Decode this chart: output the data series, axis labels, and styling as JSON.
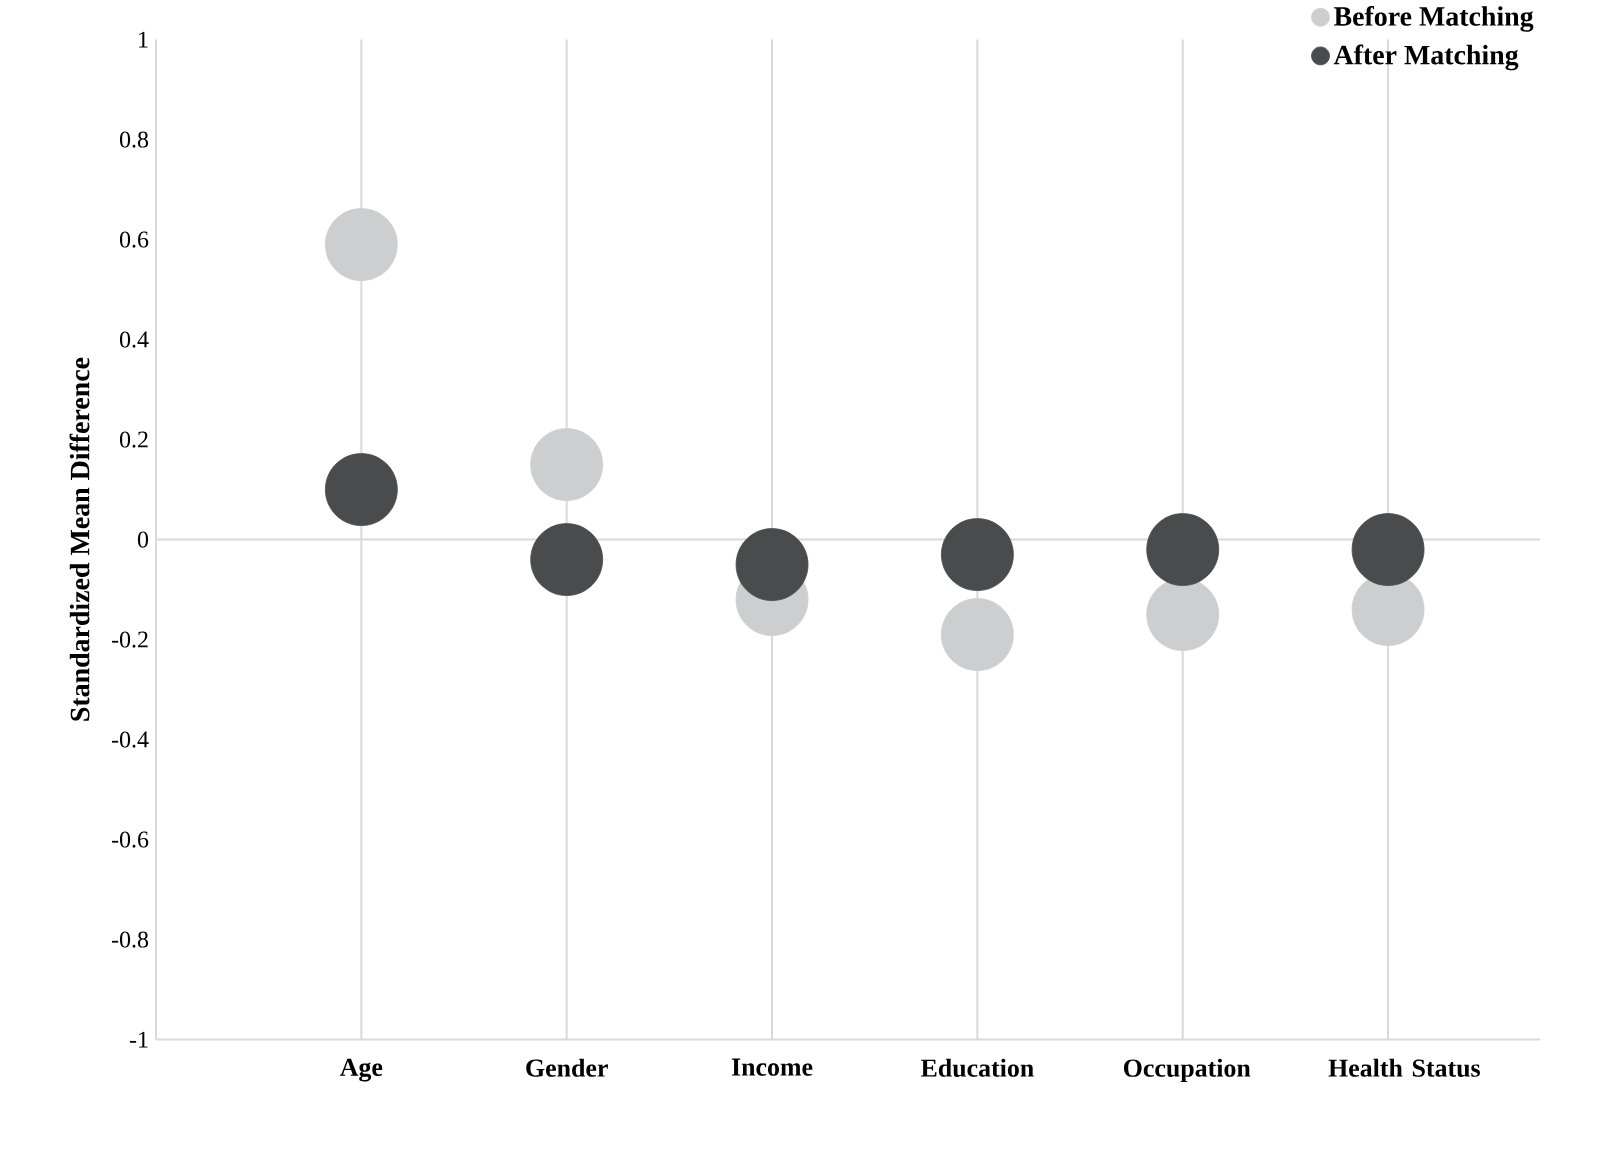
{
  "chart_data": {
    "type": "scatter",
    "ylabel": "Standardized Mean Difference",
    "categories": [
      "Age",
      "Gender",
      "Income",
      "Education",
      "Occupation",
      "Health Status"
    ],
    "series": [
      {
        "name": "Before Matching",
        "color": "#cdced0",
        "values": [
          0.59,
          0.15,
          -0.12,
          -0.19,
          -0.15,
          -0.14
        ]
      },
      {
        "name": "After Matching",
        "color": "#4a4b4d",
        "values": [
          0.1,
          -0.04,
          -0.05,
          -0.03,
          -0.02,
          -0.02
        ]
      }
    ],
    "ylim": [
      -1,
      1
    ],
    "yticks": [
      -1,
      -0.8,
      -0.6,
      -0.4,
      -0.2,
      0,
      0.2,
      0.4,
      0.6,
      0.8,
      1
    ],
    "ref_lines": [
      {
        "axis": "y",
        "value": 0,
        "color": "#d9d9d9"
      }
    ],
    "grid": "x",
    "legend": "top right",
    "marker": "circle"
  }
}
